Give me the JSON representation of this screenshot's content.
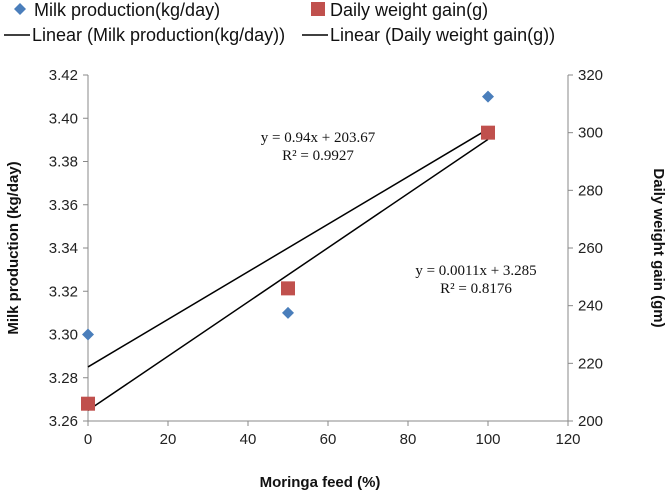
{
  "chart_data": {
    "type": "scatter",
    "xlabel": "Moringa feed (%)",
    "ylabel": "Milk production (kg/day)",
    "y2label": "Daily weight gain (gm)",
    "xlim": [
      0,
      120
    ],
    "ylim": [
      3.26,
      3.42
    ],
    "y2lim": [
      200,
      320
    ],
    "xticks": [
      "0",
      "20",
      "40",
      "60",
      "80",
      "100",
      "120"
    ],
    "yticks": [
      "3.26",
      "3.28",
      "3.30",
      "3.32",
      "3.34",
      "3.36",
      "3.38",
      "3.40",
      "3.42"
    ],
    "y2ticks": [
      "200",
      "220",
      "240",
      "260",
      "280",
      "300",
      "320"
    ],
    "grid": false,
    "legend_position": "top",
    "series": [
      {
        "name": "Milk production(kg/day)",
        "axis": "left",
        "marker": "diamond",
        "color": "#4a7ebb",
        "x": [
          0,
          50,
          100
        ],
        "y": [
          3.3,
          3.31,
          3.41
        ]
      },
      {
        "name": "Daily weight gain(g)",
        "axis": "right",
        "marker": "square",
        "color": "#c0504d",
        "x": [
          0,
          50,
          100
        ],
        "y": [
          206,
          246,
          300
        ]
      }
    ],
    "trendlines": [
      {
        "name": "Linear (Milk production(kg/day))",
        "axis": "left",
        "slope": 0.0011,
        "intercept": 3.285,
        "equation": "y = 0.0011x + 3.285",
        "r2": "R² = 0.8176"
      },
      {
        "name": "Linear (Daily weight gain(g))",
        "axis": "right",
        "slope": 0.94,
        "intercept": 203.67,
        "equation": "y = 0.94x + 203.67",
        "r2": "R² = 0.9927"
      }
    ]
  }
}
